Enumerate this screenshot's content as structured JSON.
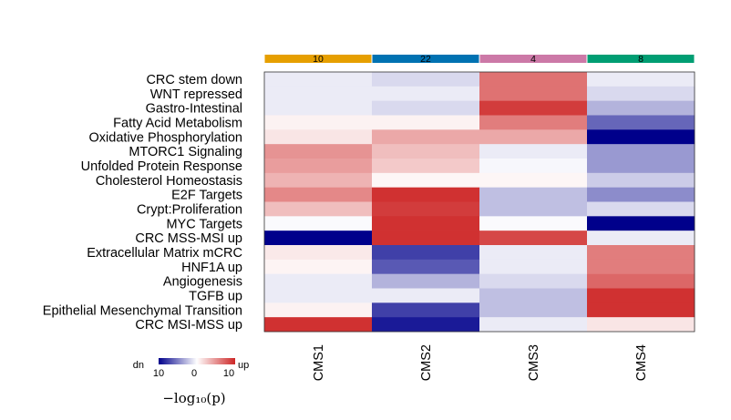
{
  "chart_data": {
    "type": "heatmap",
    "rows": [
      "CRC stem down",
      "WNT repressed",
      "Gastro-Intestinal",
      "Fatty Acid Metabolism",
      "Oxidative Phosphorylation",
      "MTORC1 Signaling",
      "Unfolded Protein Response",
      "Cholesterol Homeostasis",
      "E2F Targets",
      "Crypt:Proliferation",
      "MYC Targets",
      "CRC MSS-MSI up",
      "Extracellular Matrix mCRC",
      "HNF1A up",
      "Angiogenesis",
      "TGFB up",
      "Epithelial Mesenchymal Transition",
      "CRC MSI-MSS up"
    ],
    "columns": [
      "CMS1",
      "CMS2",
      "CMS3",
      "CMS4"
    ],
    "column_counts": [
      "10",
      "22",
      "4",
      "8"
    ],
    "column_colors": [
      "#E69F00",
      "#0072B2",
      "#CC79A7",
      "#009E73"
    ],
    "values": [
      [
        -0.8,
        -1.5,
        6.5,
        -0.8
      ],
      [
        -0.8,
        -0.8,
        6.5,
        -1.5
      ],
      [
        -0.8,
        -1.5,
        9,
        -3
      ],
      [
        0.6,
        0.6,
        6,
        -6
      ],
      [
        1.2,
        4,
        4,
        -10
      ],
      [
        5,
        3,
        -0.8,
        -4
      ],
      [
        4.5,
        2.5,
        -0.3,
        -4
      ],
      [
        3.5,
        0.4,
        0.4,
        -2
      ],
      [
        5.5,
        9.5,
        -2.5,
        -4.5
      ],
      [
        3,
        9,
        -2.5,
        -1.5
      ],
      [
        -0.2,
        9.5,
        -0.2,
        -10
      ],
      [
        -10,
        9.5,
        8.5,
        -0.8
      ],
      [
        1,
        -7.5,
        -0.8,
        6
      ],
      [
        0.5,
        -6.5,
        -0.8,
        6
      ],
      [
        -0.8,
        -3,
        -1.5,
        7
      ],
      [
        -0.8,
        -0.8,
        -2.5,
        9.5
      ],
      [
        0.6,
        -7.5,
        -2.5,
        9.5
      ],
      [
        9.5,
        -9,
        -0.8,
        1.2
      ]
    ],
    "color_scale": {
      "min": -10,
      "mid": 0,
      "max": 10,
      "low_color": "#00008B",
      "mid_color": "#FFFFFF",
      "high_color": "#CD2626"
    },
    "legend": {
      "low_label": "dn",
      "high_label": "up",
      "ticks": [
        "10",
        "0",
        "10"
      ],
      "title": "−log₁₀(p)"
    }
  }
}
